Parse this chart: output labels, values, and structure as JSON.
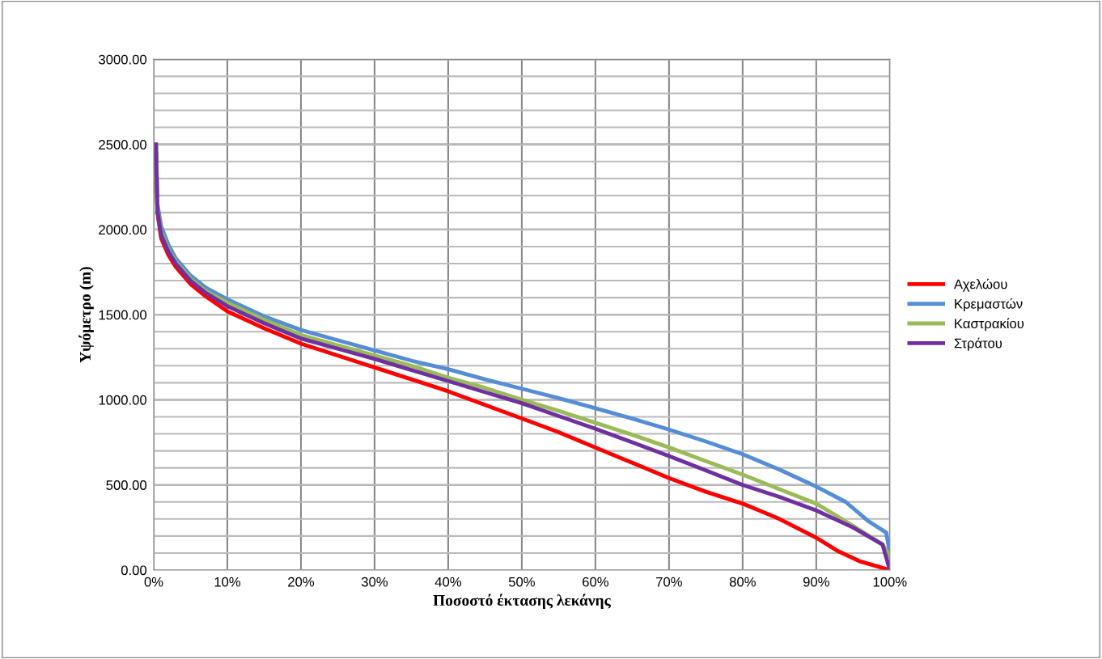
{
  "chart_data": {
    "type": "line",
    "xlabel": "Ποσοστό έκτασης λεκάνης",
    "ylabel": "Υψόμετρο (m)",
    "xlim": [
      0,
      100
    ],
    "ylim": [
      0,
      3000
    ],
    "xticks": [
      {
        "value": 0,
        "label": "0%"
      },
      {
        "value": 10,
        "label": "10%"
      },
      {
        "value": 20,
        "label": "20%"
      },
      {
        "value": 30,
        "label": "30%"
      },
      {
        "value": 40,
        "label": "40%"
      },
      {
        "value": 50,
        "label": "50%"
      },
      {
        "value": 60,
        "label": "60%"
      },
      {
        "value": 70,
        "label": "70%"
      },
      {
        "value": 80,
        "label": "80%"
      },
      {
        "value": 90,
        "label": "90%"
      },
      {
        "value": 100,
        "label": "100%"
      }
    ],
    "yticks": [
      {
        "value": 0,
        "label": "0.00"
      },
      {
        "value": 100,
        "label": null
      },
      {
        "value": 200,
        "label": null
      },
      {
        "value": 300,
        "label": null
      },
      {
        "value": 400,
        "label": null
      },
      {
        "value": 500,
        "label": "500.00"
      },
      {
        "value": 600,
        "label": null
      },
      {
        "value": 700,
        "label": null
      },
      {
        "value": 800,
        "label": null
      },
      {
        "value": 900,
        "label": null
      },
      {
        "value": 1000,
        "label": "1000.00"
      },
      {
        "value": 1100,
        "label": null
      },
      {
        "value": 1200,
        "label": null
      },
      {
        "value": 1300,
        "label": null
      },
      {
        "value": 1400,
        "label": null
      },
      {
        "value": 1500,
        "label": "1500.00"
      },
      {
        "value": 1600,
        "label": null
      },
      {
        "value": 1700,
        "label": null
      },
      {
        "value": 1800,
        "label": null
      },
      {
        "value": 1900,
        "label": null
      },
      {
        "value": 2000,
        "label": "2000.00"
      },
      {
        "value": 2100,
        "label": null
      },
      {
        "value": 2200,
        "label": null
      },
      {
        "value": 2300,
        "label": null
      },
      {
        "value": 2400,
        "label": null
      },
      {
        "value": 2500,
        "label": "2500.00"
      },
      {
        "value": 2600,
        "label": null
      },
      {
        "value": 2700,
        "label": null
      },
      {
        "value": 2800,
        "label": null
      },
      {
        "value": 2900,
        "label": null
      },
      {
        "value": 3000,
        "label": "3000.00"
      }
    ],
    "grid": true,
    "legend": "right",
    "marker": "none",
    "line_style": "solid",
    "series": [
      {
        "name": "Αχελώου",
        "color": "#ff0000",
        "x": [
          0.3,
          0.5,
          1,
          2,
          3,
          5,
          7,
          10,
          15,
          20,
          25,
          30,
          35,
          40,
          45,
          50,
          55,
          60,
          65,
          70,
          75,
          80,
          85,
          90,
          93,
          96,
          100
        ],
        "values": [
          2500,
          2100,
          1950,
          1850,
          1780,
          1680,
          1610,
          1520,
          1420,
          1330,
          1260,
          1190,
          1120,
          1050,
          970,
          890,
          810,
          720,
          630,
          540,
          460,
          390,
          300,
          190,
          110,
          50,
          0
        ]
      },
      {
        "name": "Κρεμαστών",
        "color": "#558ed5",
        "x": [
          0.3,
          0.5,
          1,
          2,
          3,
          5,
          7,
          10,
          15,
          20,
          25,
          30,
          35,
          40,
          45,
          50,
          55,
          60,
          65,
          70,
          75,
          80,
          85,
          90,
          94,
          97,
          99.5,
          100
        ],
        "values": [
          2500,
          2150,
          2020,
          1910,
          1830,
          1730,
          1660,
          1590,
          1490,
          1410,
          1350,
          1290,
          1230,
          1180,
          1120,
          1065,
          1010,
          950,
          890,
          825,
          755,
          680,
          590,
          490,
          400,
          290,
          220,
          100
        ]
      },
      {
        "name": "Καστρακίου",
        "color": "#9bbb59",
        "x": [
          0.3,
          0.5,
          1,
          2,
          3,
          5,
          7,
          10,
          15,
          20,
          25,
          30,
          35,
          40,
          45,
          50,
          55,
          60,
          65,
          70,
          75,
          80,
          85,
          90,
          95,
          99,
          100
        ],
        "values": [
          2500,
          2120,
          1990,
          1880,
          1810,
          1710,
          1640,
          1570,
          1470,
          1380,
          1320,
          1260,
          1200,
          1130,
          1070,
          1000,
          935,
          865,
          795,
          720,
          640,
          560,
          475,
          390,
          260,
          150,
          80
        ]
      },
      {
        "name": "Στράτου",
        "color": "#7030a0",
        "x": [
          0.3,
          0.5,
          1,
          2,
          3,
          5,
          7,
          10,
          15,
          20,
          25,
          30,
          35,
          40,
          45,
          50,
          55,
          60,
          65,
          70,
          75,
          80,
          85,
          90,
          95,
          99,
          100
        ],
        "values": [
          2500,
          2110,
          1970,
          1870,
          1800,
          1700,
          1630,
          1550,
          1450,
          1360,
          1300,
          1240,
          1175,
          1110,
          1045,
          980,
          905,
          830,
          750,
          670,
          585,
          500,
          430,
          350,
          250,
          150,
          0
        ]
      }
    ]
  }
}
